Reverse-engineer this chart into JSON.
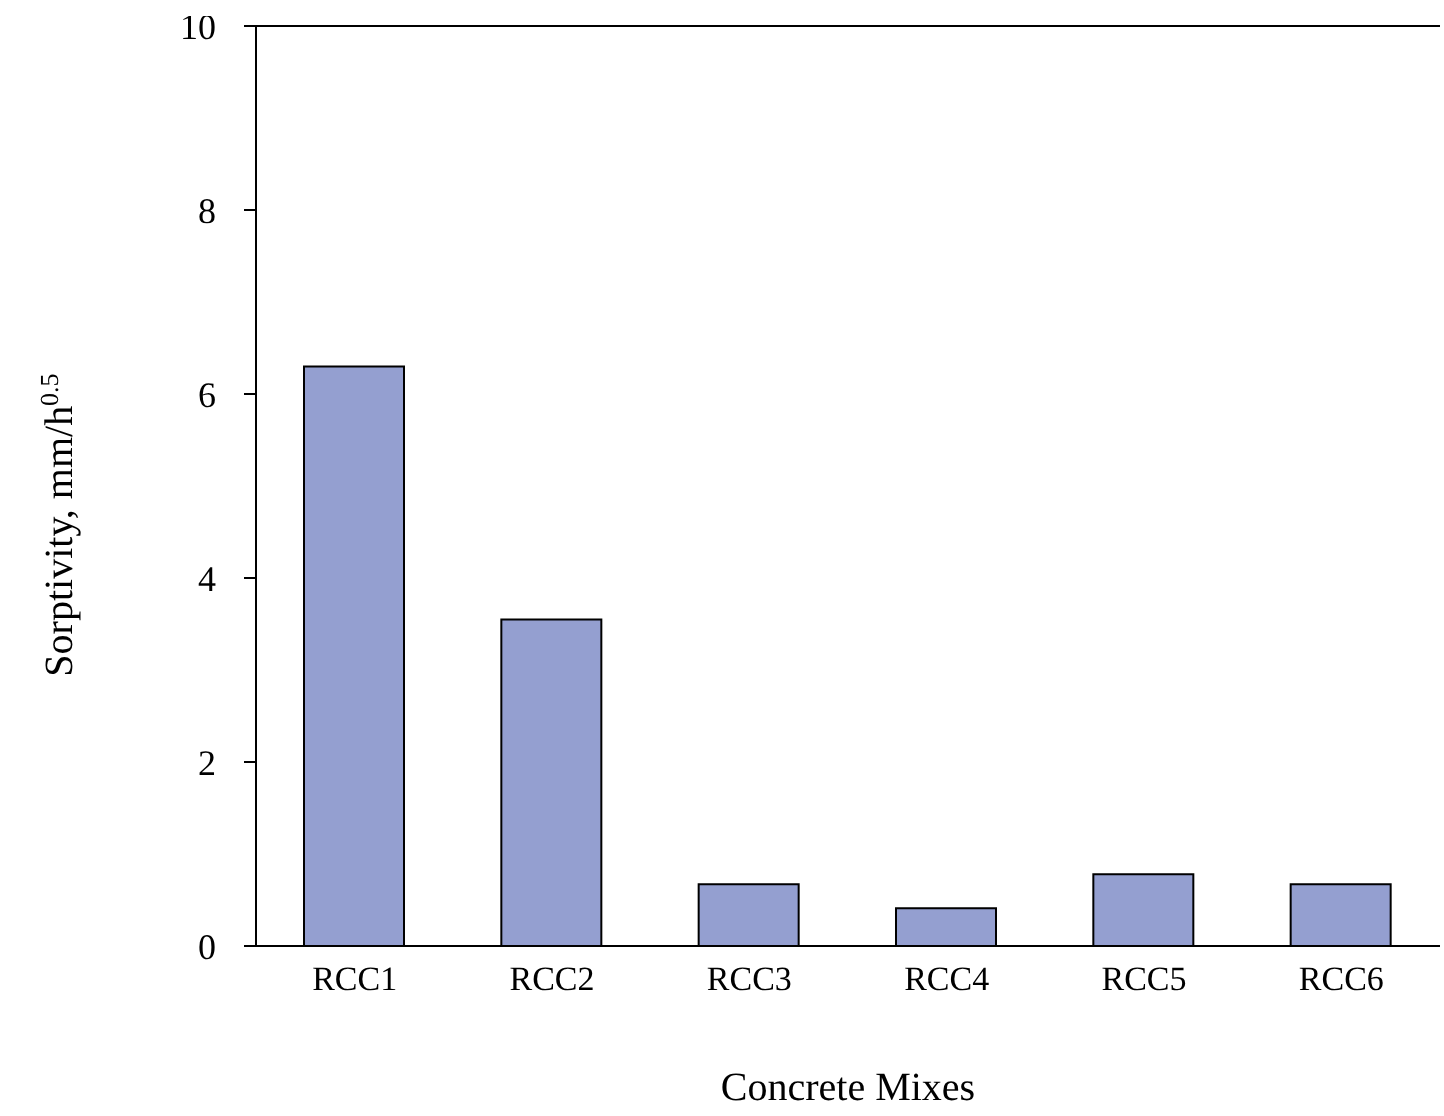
{
  "chart_data": {
    "type": "bar",
    "xlabel": "Concrete Mixes",
    "ylabel": "Sorptivity, mm/h$^{0.5}$",
    "categories": [
      "RCC1",
      "RCC2",
      "RCC3",
      "RCC4",
      "RCC5",
      "RCC6"
    ],
    "values": [
      6.3,
      3.55,
      0.67,
      0.41,
      0.78,
      0.67
    ],
    "color": "#949fd0",
    "ylim": [
      0,
      10
    ],
    "yticks": [
      0,
      2,
      4,
      6,
      8,
      10
    ],
    "grid": false
  }
}
